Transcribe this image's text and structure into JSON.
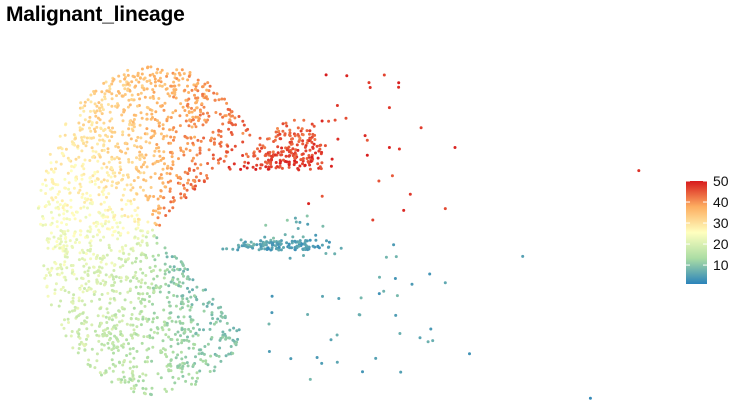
{
  "chart_data": {
    "type": "scatter",
    "title": "Malignant_lineage",
    "xlabel": "",
    "ylabel": "",
    "axes_visible": false,
    "grid": false,
    "color_scale": {
      "name": "",
      "min": 1,
      "max": 50,
      "ticks": [
        10,
        20,
        30,
        40,
        50
      ],
      "palette": [
        "#2b83ba",
        "#abdda4",
        "#ffffbf",
        "#fdae61",
        "#d7191c"
      ],
      "placement": "right"
    },
    "point_color_field": "value",
    "outlier_points": [
      {
        "x": 1.0,
        "y": 0.36,
        "value": 48
      },
      {
        "x": 0.76,
        "y": -0.16,
        "value": 5
      },
      {
        "x": 0.6,
        "y": -0.32,
        "value": 6
      },
      {
        "x": 0.6,
        "y": 0.13,
        "value": 46
      },
      {
        "x": 0.62,
        "y": 0.5,
        "value": 49
      },
      {
        "x": 0.55,
        "y": 0.62,
        "value": 47
      },
      {
        "x": 0.57,
        "y": -0.6,
        "value": 4
      },
      {
        "x": 0.65,
        "y": -0.75,
        "value": 3
      },
      {
        "x": 0.9,
        "y": -1.02,
        "value": 2
      }
    ]
  }
}
